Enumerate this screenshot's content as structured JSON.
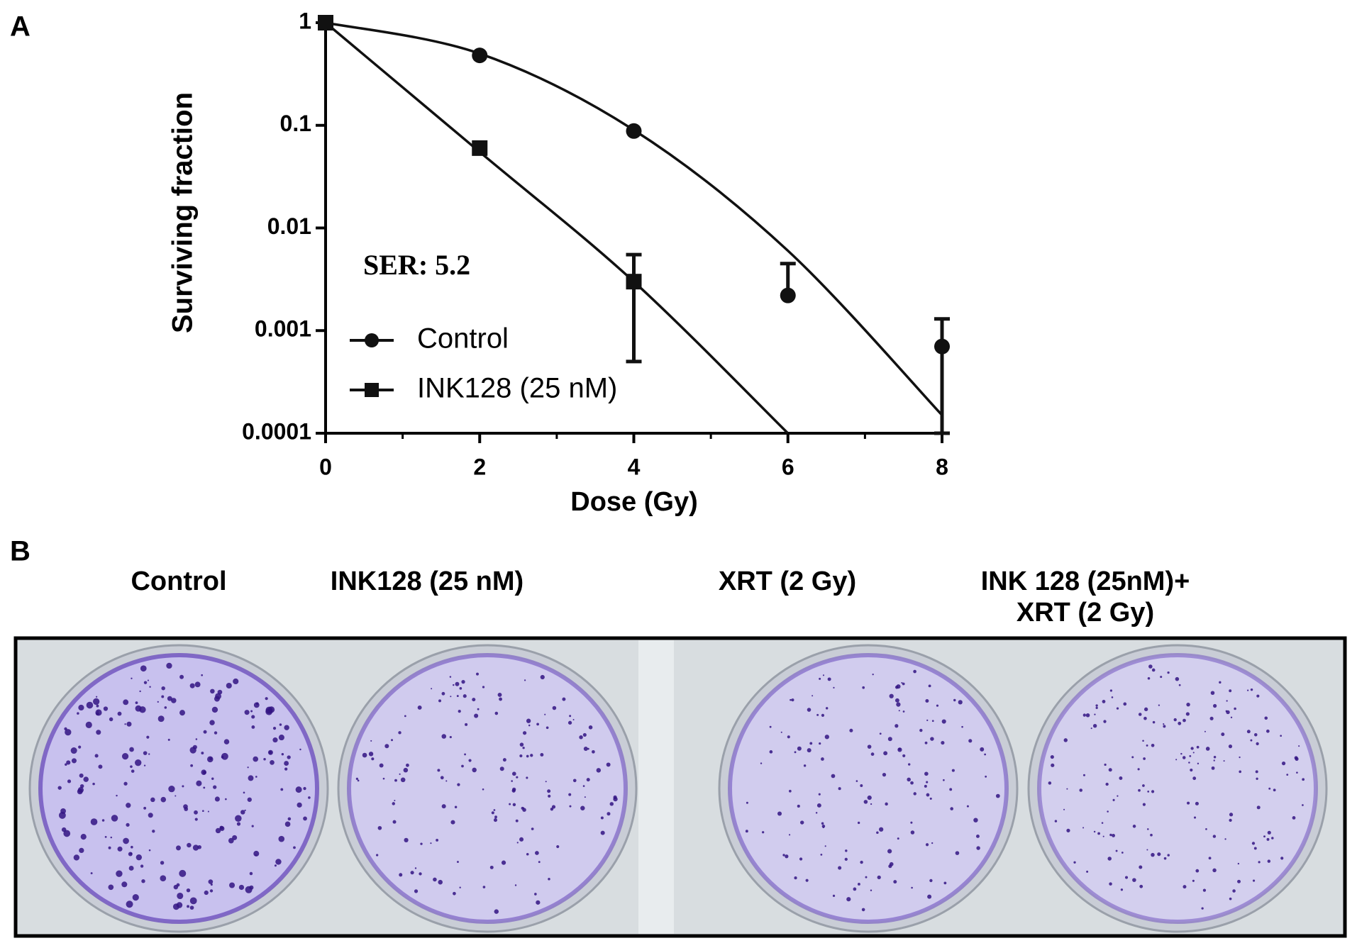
{
  "panel_labels": [
    "A",
    "B"
  ],
  "chart_data": {
    "type": "scatter",
    "xlabel": "Dose (Gy)",
    "ylabel": "Surviving fraction",
    "annotation": "SER: 5.2",
    "xlim": [
      0,
      8
    ],
    "xticks": [
      0,
      2,
      4,
      6,
      8
    ],
    "ylim": [
      0.0001,
      1
    ],
    "yticks": [
      0.0001,
      0.001,
      0.01,
      0.1,
      1
    ],
    "log_y": true,
    "legend": "lower left",
    "series": [
      {
        "name": "Control",
        "color": "#111111",
        "marker": "circle",
        "x": [
          0,
          2,
          4,
          6,
          8
        ],
        "values": [
          1,
          0.48,
          0.088,
          0.0022,
          0.0007
        ],
        "errors": [
          null,
          null,
          null,
          0.0023,
          0.0006
        ],
        "fit_x": [
          0,
          2,
          4,
          6,
          8
        ],
        "fit_values": [
          1,
          0.5,
          0.09,
          0.006,
          0.00015
        ]
      },
      {
        "name": "INK128 (25 nM)",
        "color": "#111111",
        "marker": "square",
        "x": [
          0,
          2,
          4
        ],
        "values": [
          1,
          0.06,
          0.003
        ],
        "errors": [
          null,
          null,
          0.0025
        ],
        "fit_x": [
          0,
          2,
          4,
          6
        ],
        "fit_values": [
          1,
          0.055,
          0.003,
          0.0001
        ]
      }
    ]
  },
  "plate_labels": [
    "Control",
    "INK128 (25 nM)",
    "XRT (2 Gy)",
    "INK 128 (25nM)+",
    "XRT (2 Gy)"
  ]
}
